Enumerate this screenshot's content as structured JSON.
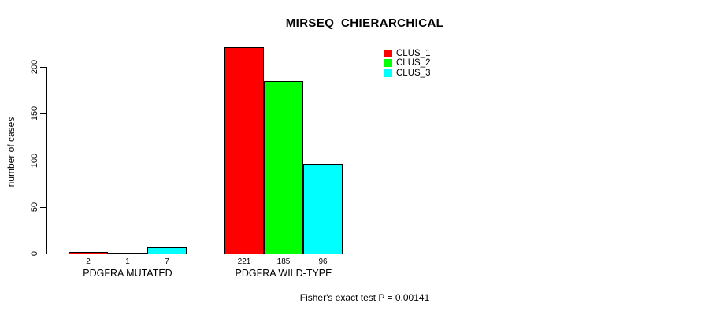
{
  "chart_data": {
    "type": "bar",
    "title": "MIRSEQ_CHIERARCHICAL",
    "ylabel": "number of cases",
    "xlabel": "",
    "ylim": [
      0,
      200
    ],
    "yticks": [
      0,
      50,
      100,
      150,
      200
    ],
    "categories": [
      "PDGFRA MUTATED",
      "PDGFRA WILD-TYPE"
    ],
    "series": [
      {
        "name": "CLUS_1",
        "color": "#ff0000",
        "values": [
          2,
          221
        ]
      },
      {
        "name": "CLUS_2",
        "color": "#00ff00",
        "values": [
          1,
          185
        ]
      },
      {
        "name": "CLUS_3",
        "color": "#00ffff",
        "values": [
          7,
          96
        ]
      }
    ],
    "bar_value_labels_shown": true,
    "legend_position": "top-right",
    "grid": false,
    "annotation": "Fisher's exact test P = 0.00141",
    "colors": {
      "bar_border": "#000000",
      "axis": "#000000",
      "text": "#000000",
      "background": "#ffffff"
    }
  }
}
